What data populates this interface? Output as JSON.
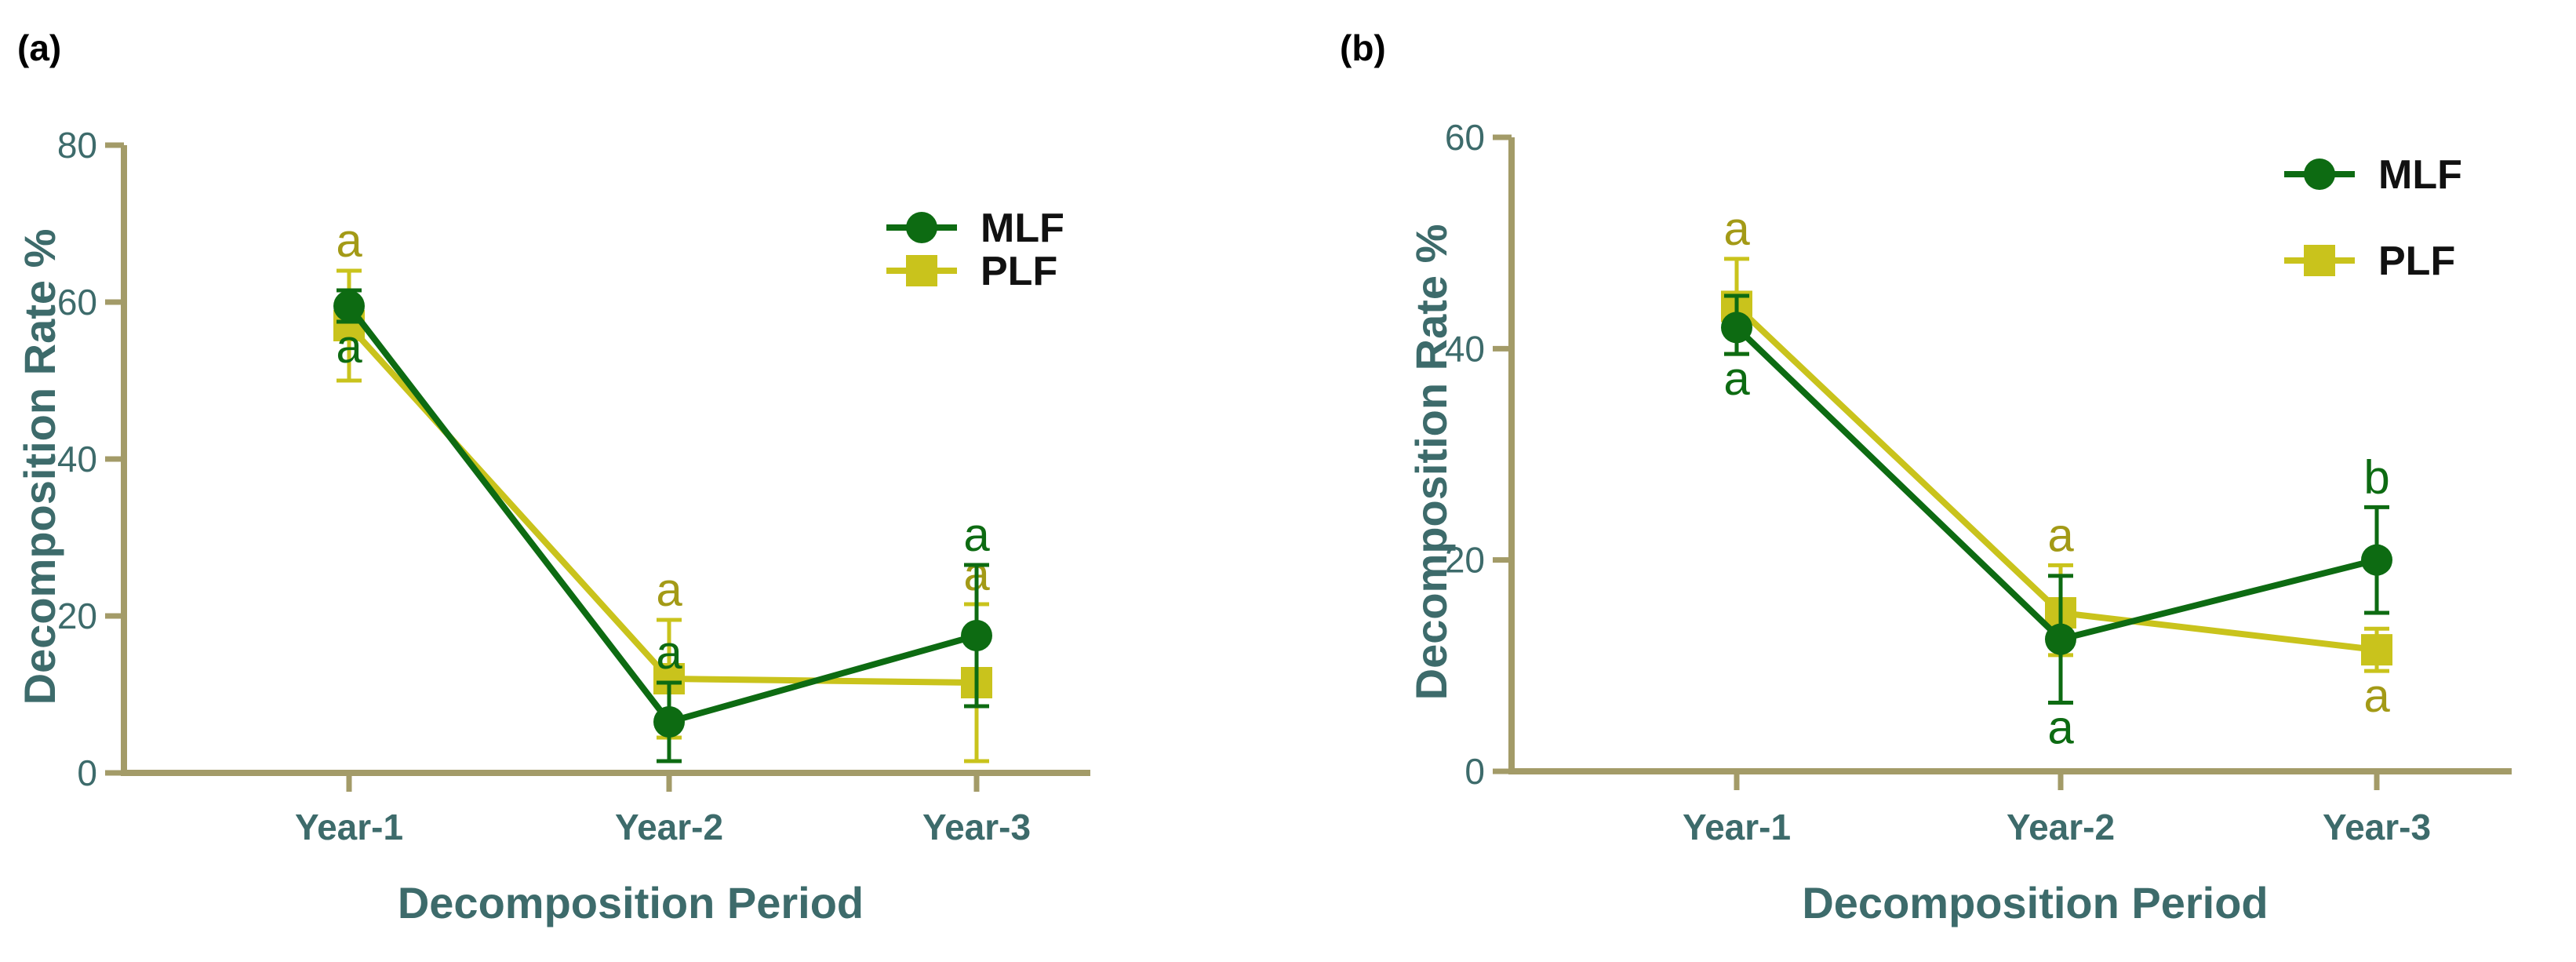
{
  "colors": {
    "axis": "#a39b68",
    "axis_text": "#3d6b6b",
    "mlf": "#0d6b12",
    "plf": "#c9c31c",
    "plf_letter": "#a39a16"
  },
  "chart_data": [
    {
      "panel_label": "(a)",
      "type": "line",
      "title": "",
      "xlabel": "Decomposition Period",
      "ylabel": "Decomposition Rate %",
      "categories": [
        "Year-1",
        "Year-2",
        "Year-3"
      ],
      "ylim": [
        0,
        80
      ],
      "yticks": [
        0,
        20,
        40,
        60,
        80
      ],
      "legend_position": "top-right",
      "series": [
        {
          "name": "MLF",
          "marker": "circle",
          "values": [
            59.5,
            6.5,
            17.5
          ],
          "err_low": [
            57.5,
            1.5,
            8.5
          ],
          "err_high": [
            61.5,
            11.5,
            26.5
          ],
          "letters": [
            "a",
            "a",
            "a"
          ],
          "letter_pos": [
            "below",
            "above",
            "above"
          ]
        },
        {
          "name": "PLF",
          "marker": "square",
          "values": [
            57,
            12,
            11.5
          ],
          "err_low": [
            50,
            4.5,
            1.5
          ],
          "err_high": [
            64,
            19.5,
            21.5
          ],
          "letters": [
            "a",
            "a",
            "a"
          ],
          "letter_pos": [
            "above",
            "above",
            "above"
          ]
        }
      ]
    },
    {
      "panel_label": "(b)",
      "type": "line",
      "title": "",
      "xlabel": "Decomposition Period",
      "ylabel": "Decomposition Rate %",
      "categories": [
        "Year-1",
        "Year-2",
        "Year-3"
      ],
      "ylim": [
        0,
        60
      ],
      "yticks": [
        0,
        20,
        40,
        60
      ],
      "legend_position": "top-right",
      "series": [
        {
          "name": "MLF",
          "marker": "circle",
          "values": [
            42,
            12.5,
            20
          ],
          "err_low": [
            39.5,
            6.5,
            15
          ],
          "err_high": [
            45,
            18.5,
            25
          ],
          "letters": [
            "a",
            "a",
            "b"
          ],
          "letter_pos": [
            "below",
            "below",
            "above"
          ]
        },
        {
          "name": "PLF",
          "marker": "square",
          "values": [
            44,
            15,
            11.5
          ],
          "err_low": [
            39.5,
            11,
            9.5
          ],
          "err_high": [
            48.5,
            19.5,
            13.5
          ],
          "letters": [
            "a",
            "a",
            "a"
          ],
          "letter_pos": [
            "above",
            "above",
            "below"
          ]
        }
      ]
    }
  ]
}
